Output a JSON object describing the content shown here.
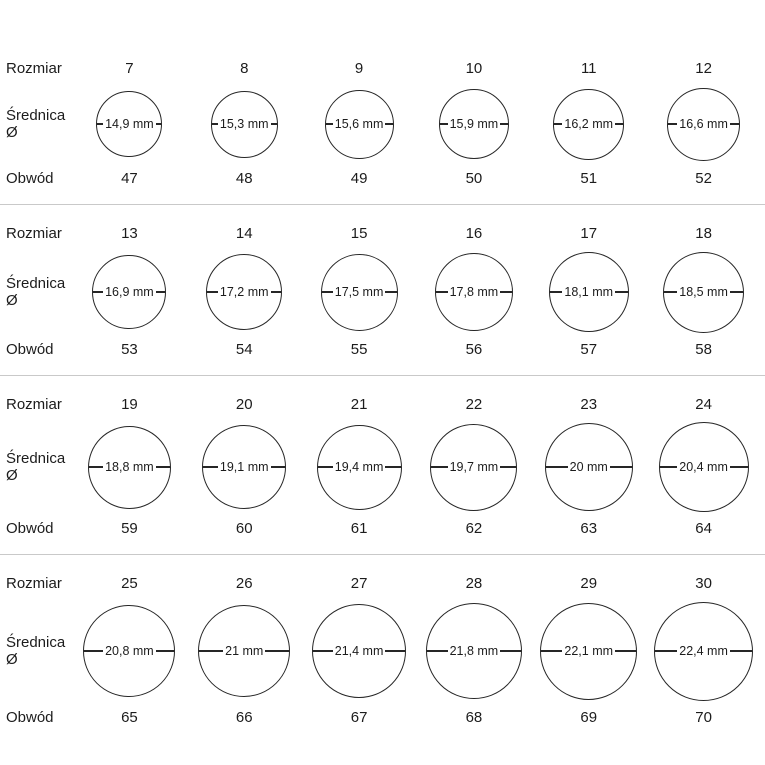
{
  "labels": {
    "size": "Rozmiar",
    "diameter": "Średnica Ø",
    "circumference": "Obwód"
  },
  "chart_data": {
    "type": "table",
    "title": "",
    "columns": [
      "Rozmiar",
      "Średnica Ø",
      "Obwód"
    ],
    "rows_note": "ring size chart: size / diameter mm / circumference"
  },
  "rows": [
    {
      "cells": [
        {
          "size": "7",
          "diameter_label": "14,9 mm",
          "diameter_mm": 14.9,
          "circumference": "47"
        },
        {
          "size": "8",
          "diameter_label": "15,3 mm",
          "diameter_mm": 15.3,
          "circumference": "48"
        },
        {
          "size": "9",
          "diameter_label": "15,6 mm",
          "diameter_mm": 15.6,
          "circumference": "49"
        },
        {
          "size": "10",
          "diameter_label": "15,9 mm",
          "diameter_mm": 15.9,
          "circumference": "50"
        },
        {
          "size": "11",
          "diameter_label": "16,2 mm",
          "diameter_mm": 16.2,
          "circumference": "51"
        },
        {
          "size": "12",
          "diameter_label": "16,6 mm",
          "diameter_mm": 16.6,
          "circumference": "52"
        }
      ]
    },
    {
      "cells": [
        {
          "size": "13",
          "diameter_label": "16,9 mm",
          "diameter_mm": 16.9,
          "circumference": "53"
        },
        {
          "size": "14",
          "diameter_label": "17,2 mm",
          "diameter_mm": 17.2,
          "circumference": "54"
        },
        {
          "size": "15",
          "diameter_label": "17,5 mm",
          "diameter_mm": 17.5,
          "circumference": "55"
        },
        {
          "size": "16",
          "diameter_label": "17,8 mm",
          "diameter_mm": 17.8,
          "circumference": "56"
        },
        {
          "size": "17",
          "diameter_label": "18,1 mm",
          "diameter_mm": 18.1,
          "circumference": "57"
        },
        {
          "size": "18",
          "diameter_label": "18,5 mm",
          "diameter_mm": 18.5,
          "circumference": "58"
        }
      ]
    },
    {
      "cells": [
        {
          "size": "19",
          "diameter_label": "18,8 mm",
          "diameter_mm": 18.8,
          "circumference": "59"
        },
        {
          "size": "20",
          "diameter_label": "19,1 mm",
          "diameter_mm": 19.1,
          "circumference": "60"
        },
        {
          "size": "21",
          "diameter_label": "19,4 mm",
          "diameter_mm": 19.4,
          "circumference": "61"
        },
        {
          "size": "22",
          "diameter_label": "19,7 mm",
          "diameter_mm": 19.7,
          "circumference": "62"
        },
        {
          "size": "23",
          "diameter_label": "20 mm",
          "diameter_mm": 20.0,
          "circumference": "63"
        },
        {
          "size": "24",
          "diameter_label": "20,4 mm",
          "diameter_mm": 20.4,
          "circumference": "64"
        }
      ]
    },
    {
      "cells": [
        {
          "size": "25",
          "diameter_label": "20,8 mm",
          "diameter_mm": 20.8,
          "circumference": "65"
        },
        {
          "size": "26",
          "diameter_label": "21 mm",
          "diameter_mm": 21.0,
          "circumference": "66"
        },
        {
          "size": "27",
          "diameter_label": "21,4 mm",
          "diameter_mm": 21.4,
          "circumference": "67"
        },
        {
          "size": "28",
          "diameter_label": "21,8 mm",
          "diameter_mm": 21.8,
          "circumference": "68"
        },
        {
          "size": "29",
          "diameter_label": "22,1 mm",
          "diameter_mm": 22.1,
          "circumference": "69"
        },
        {
          "size": "30",
          "diameter_label": "22,4 mm",
          "diameter_mm": 22.4,
          "circumference": "70"
        }
      ]
    }
  ]
}
